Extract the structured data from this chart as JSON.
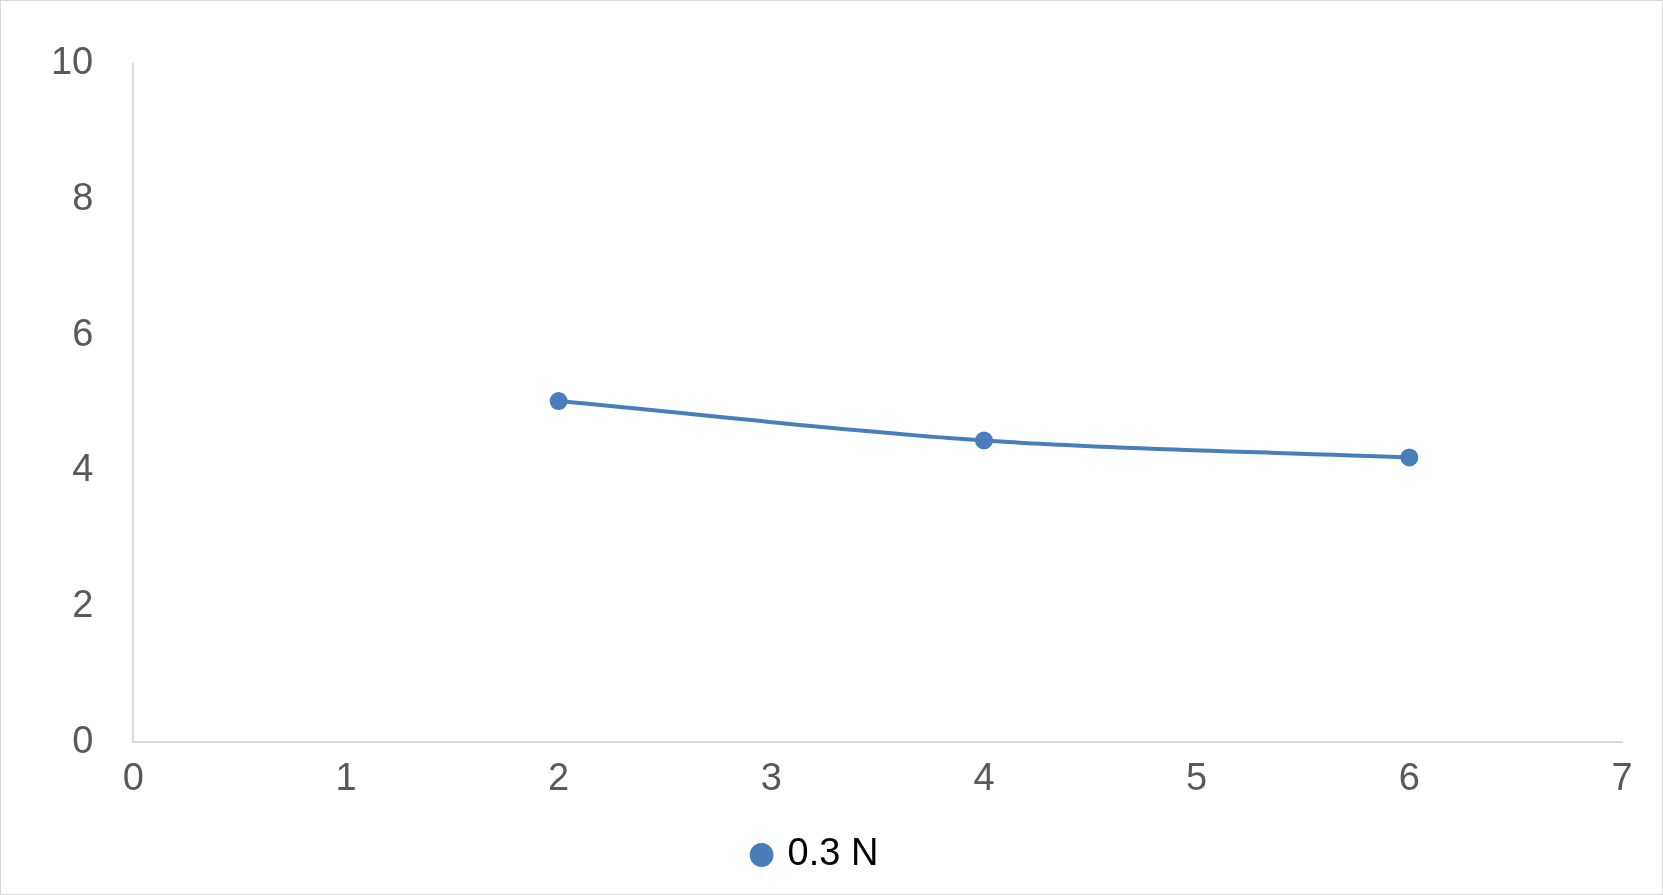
{
  "chart_data": {
    "type": "line",
    "x": [
      2,
      4,
      6
    ],
    "series": [
      {
        "name": "0.3 N",
        "color": "#4a7ebb",
        "values": [
          5.03,
          4.45,
          4.2
        ]
      }
    ],
    "xlim": [
      0,
      7
    ],
    "xticks": [
      0,
      1,
      2,
      3,
      4,
      5,
      6,
      7
    ],
    "ylim": [
      0,
      10
    ],
    "yticks": [
      0,
      2,
      4,
      6,
      8,
      10
    ],
    "grid": false,
    "legend": "bottom",
    "marker": "circle",
    "line_style": "solid"
  }
}
